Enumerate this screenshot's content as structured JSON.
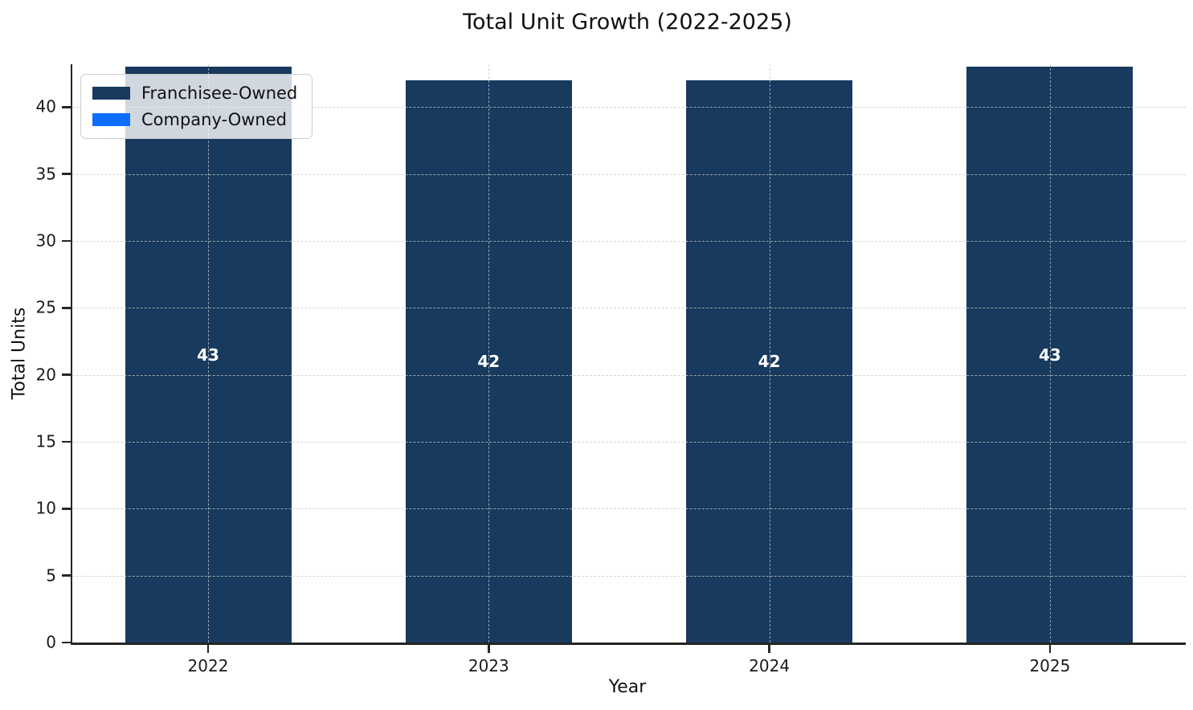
{
  "chart_data": {
    "type": "bar",
    "stacked": true,
    "title": "Total Unit Growth (2022-2025)",
    "xlabel": "Year",
    "ylabel": "Total Units",
    "categories": [
      "2022",
      "2023",
      "2024",
      "2025"
    ],
    "series": [
      {
        "name": "Franchisee-Owned",
        "color": "#173a5e",
        "values": [
          43,
          42,
          42,
          43
        ]
      },
      {
        "name": "Company-Owned",
        "color": "#0d6efd",
        "values": [
          0,
          0,
          0,
          0
        ]
      }
    ],
    "bar_labels": [
      "43",
      "42",
      "42",
      "43"
    ],
    "ylim": [
      0,
      43.2
    ],
    "yticks": [
      0,
      5,
      10,
      15,
      20,
      25,
      30,
      35,
      40
    ],
    "grid": true,
    "grid_style": "dashed",
    "legend_position": "upper-left",
    "bar_label_color": "#ffffff",
    "text_color": "#111111"
  }
}
